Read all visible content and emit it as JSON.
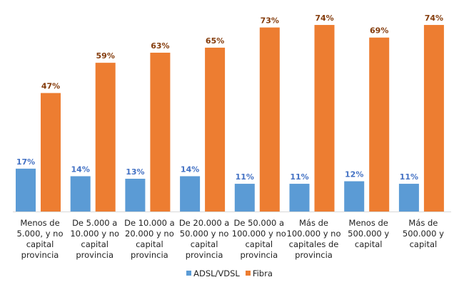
{
  "chart_data": {
    "type": "bar",
    "title": "",
    "xlabel": "",
    "ylabel": "",
    "ylim": [
      0,
      80
    ],
    "grid": false,
    "legend_position": "bottom",
    "categories": [
      "Menos de 5.000, y no capital provincia",
      "De 5.000 a 10.000 y no capital provincia",
      "De 10.000 a 20.000 y no capital provincia",
      "De 20.000 a 50.000 y no capital provincia",
      "De 50.000 a 100.000 y no capital provincia",
      "Más de 100.000 y no capitales de provincia",
      "Menos de 500.000 y capital",
      "Más de 500.000 y capital"
    ],
    "series": [
      {
        "name": "ADSL/VDSL",
        "color": "#5B9BD5",
        "label_color": "#4472C4",
        "values": [
          17,
          14,
          13,
          14,
          11,
          11,
          12,
          11
        ]
      },
      {
        "name": "Fibra",
        "color": "#ED7D31",
        "label_color": "#843C0C",
        "values": [
          47,
          59,
          63,
          65,
          73,
          74,
          69,
          74
        ]
      }
    ]
  }
}
